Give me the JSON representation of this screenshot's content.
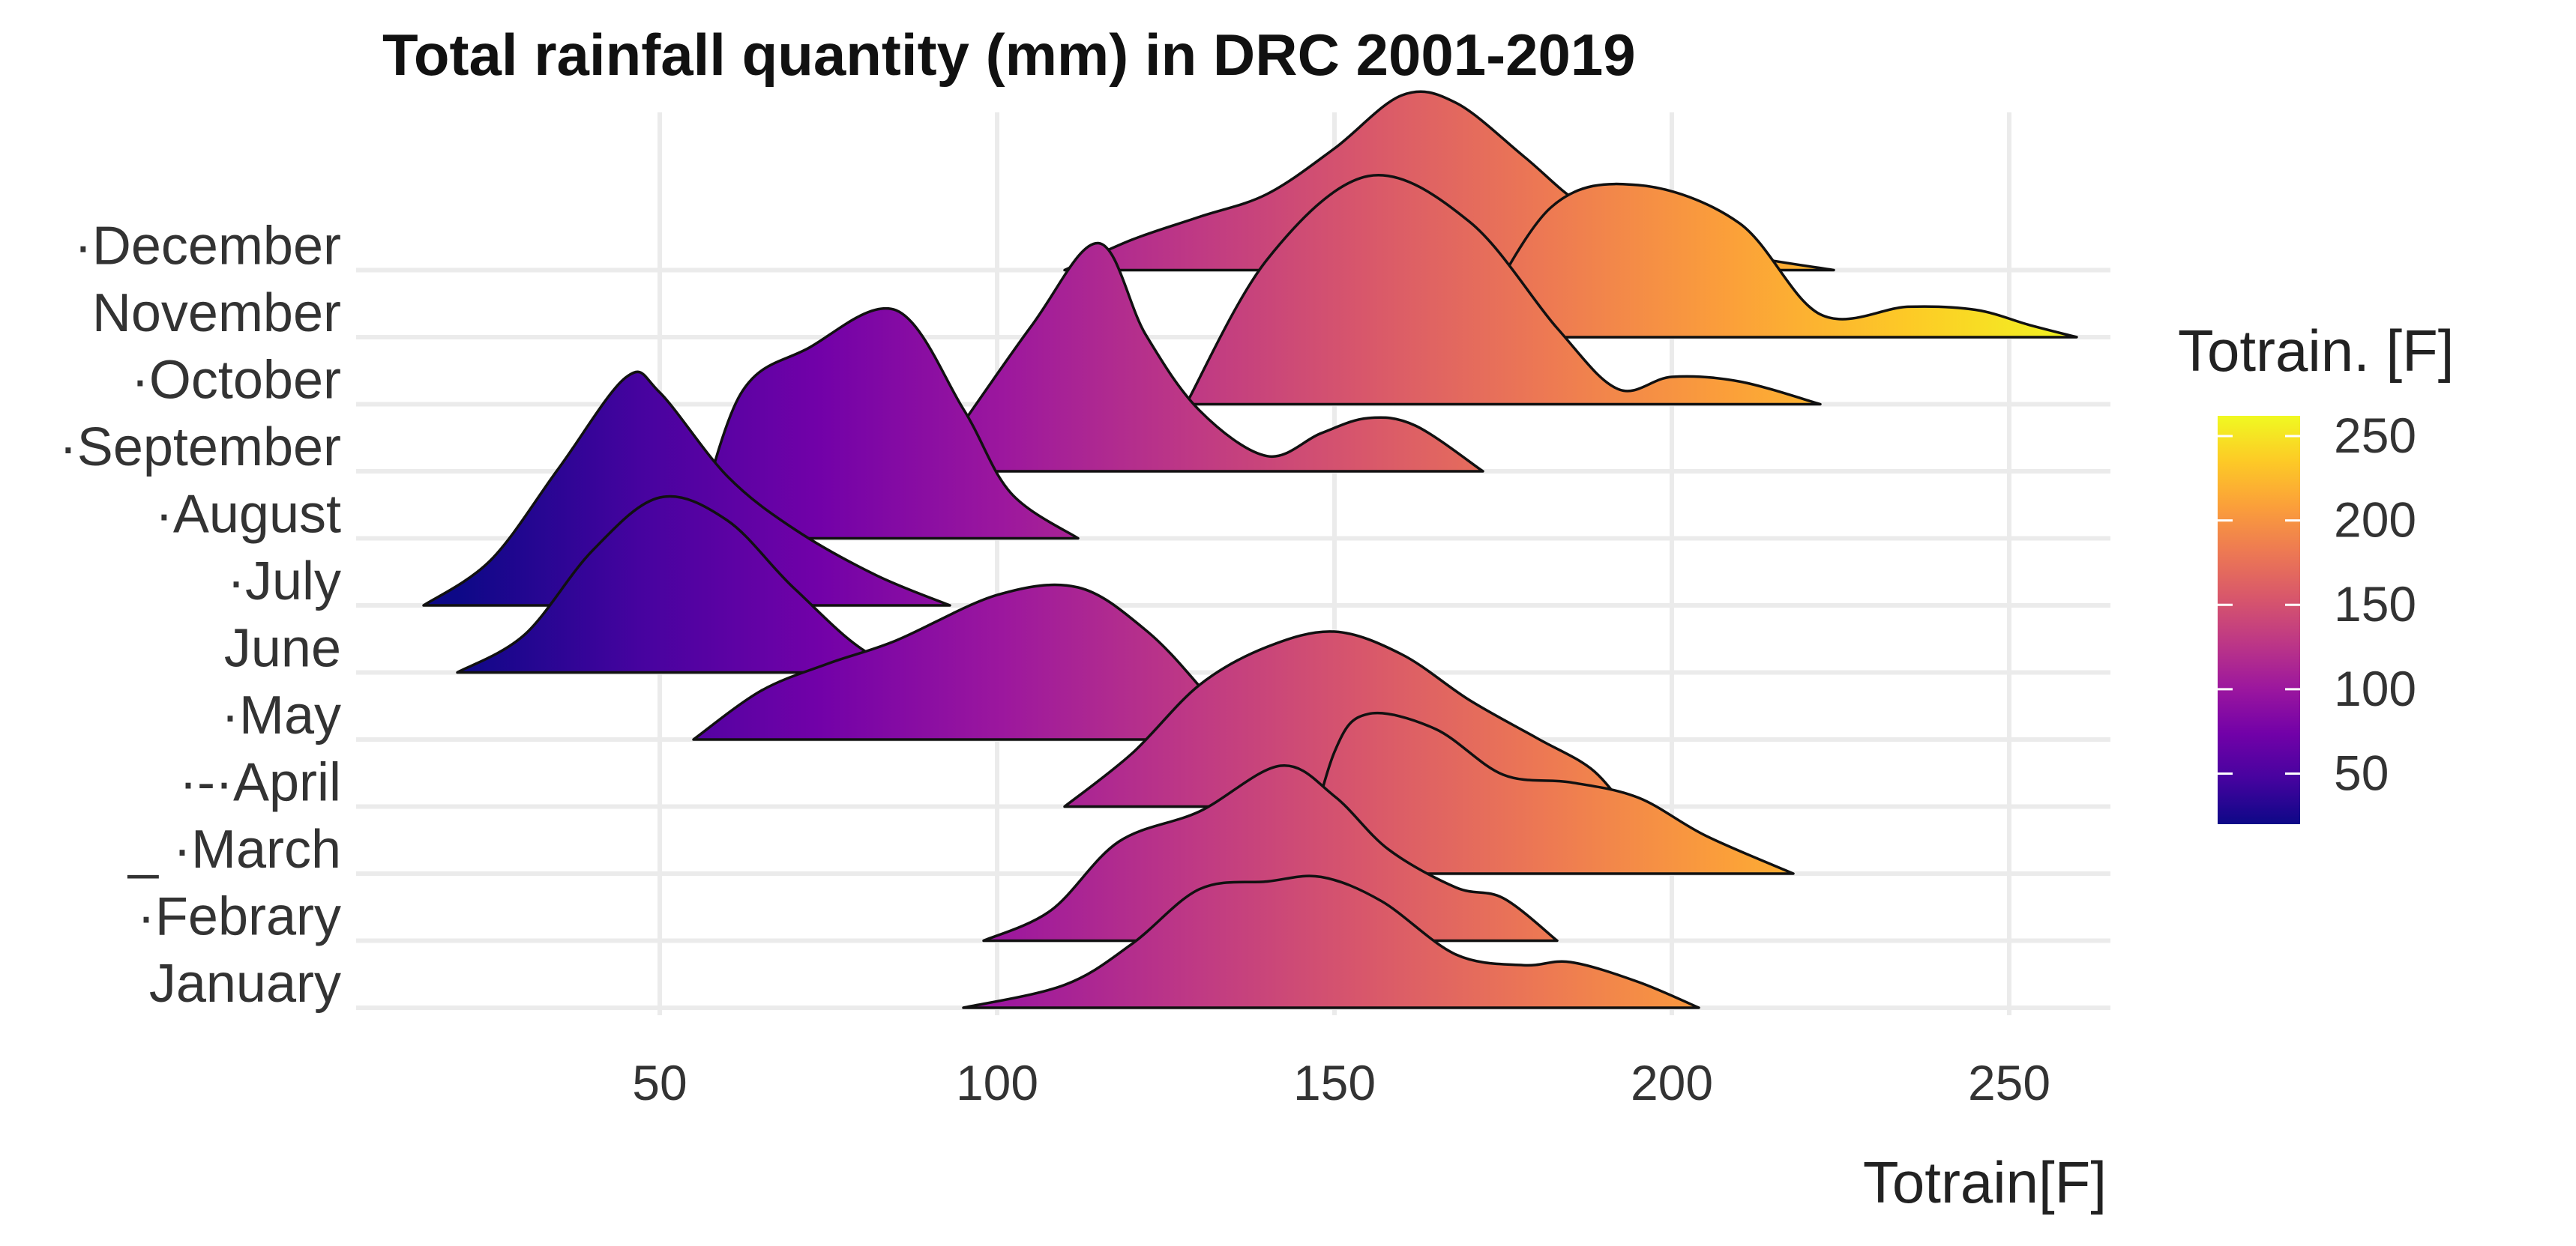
{
  "chart_data": {
    "type": "ridgeline",
    "title": "Total rainfall quantity (mm) in DRC 2001-2019",
    "xlabel": "Totrain[F]",
    "ylabel": "",
    "xlim": [
      5,
      265
    ],
    "x_ticks": [
      50,
      100,
      150,
      200,
      250
    ],
    "grid": true,
    "colorscale": "plasma",
    "legend": {
      "title": "Totrain. [F]",
      "placement": "right",
      "range": [
        20,
        262
      ],
      "ticks": [
        50,
        100,
        150,
        200,
        250
      ]
    },
    "categories": [
      "January",
      "Febrary",
      "March",
      "April",
      "May",
      "June",
      "July",
      "August",
      "September",
      "October",
      "November",
      "December"
    ],
    "category_labels": [
      "January",
      "·Febrary",
      "_ ·March",
      "·-·April",
      "·May",
      "June",
      "·July",
      "·August",
      "·September",
      "·October",
      "November",
      "·December"
    ],
    "series": [
      {
        "name": "January",
        "points": [
          [
            95,
            0
          ],
          [
            110,
            0.15
          ],
          [
            120,
            0.42
          ],
          [
            130,
            0.78
          ],
          [
            140,
            0.83
          ],
          [
            148,
            0.86
          ],
          [
            157,
            0.7
          ],
          [
            168,
            0.35
          ],
          [
            178,
            0.28
          ],
          [
            185,
            0.3
          ],
          [
            195,
            0.17
          ],
          [
            204,
            0
          ]
        ]
      },
      {
        "name": "Febrary",
        "points": [
          [
            98,
            0
          ],
          [
            108,
            0.2
          ],
          [
            118,
            0.65
          ],
          [
            130,
            0.85
          ],
          [
            142,
            1.15
          ],
          [
            150,
            0.95
          ],
          [
            158,
            0.6
          ],
          [
            168,
            0.35
          ],
          [
            175,
            0.28
          ],
          [
            183,
            0
          ]
        ]
      },
      {
        "name": "March",
        "points": [
          [
            145,
            0
          ],
          [
            150,
            0.8
          ],
          [
            155,
            1.05
          ],
          [
            165,
            0.95
          ],
          [
            175,
            0.65
          ],
          [
            185,
            0.6
          ],
          [
            195,
            0.5
          ],
          [
            205,
            0.25
          ],
          [
            218,
            0
          ]
        ]
      },
      {
        "name": "April",
        "points": [
          [
            110,
            0
          ],
          [
            120,
            0.35
          ],
          [
            130,
            0.8
          ],
          [
            140,
            1.05
          ],
          [
            150,
            1.15
          ],
          [
            160,
            1.0
          ],
          [
            170,
            0.7
          ],
          [
            180,
            0.45
          ],
          [
            188,
            0.25
          ],
          [
            193,
            0
          ]
        ]
      },
      {
        "name": "May",
        "points": [
          [
            55,
            0
          ],
          [
            65,
            0.32
          ],
          [
            75,
            0.5
          ],
          [
            85,
            0.65
          ],
          [
            100,
            0.95
          ],
          [
            112,
            1.0
          ],
          [
            122,
            0.72
          ],
          [
            130,
            0.35
          ],
          [
            136,
            0
          ]
        ]
      },
      {
        "name": "June",
        "points": [
          [
            20,
            0
          ],
          [
            30,
            0.25
          ],
          [
            40,
            0.8
          ],
          [
            50,
            1.15
          ],
          [
            60,
            1.0
          ],
          [
            70,
            0.55
          ],
          [
            82,
            0.1
          ],
          [
            95,
            0
          ]
        ]
      },
      {
        "name": "July",
        "points": [
          [
            15,
            0
          ],
          [
            25,
            0.3
          ],
          [
            35,
            0.9
          ],
          [
            45,
            1.5
          ],
          [
            50,
            1.4
          ],
          [
            60,
            0.85
          ],
          [
            70,
            0.5
          ],
          [
            82,
            0.2
          ],
          [
            93,
            0
          ]
        ]
      },
      {
        "name": "August",
        "points": [
          [
            55,
            0
          ],
          [
            62,
            0.95
          ],
          [
            72,
            1.25
          ],
          [
            85,
            1.5
          ],
          [
            95,
            0.85
          ],
          [
            102,
            0.3
          ],
          [
            112,
            0
          ]
        ]
      },
      {
        "name": "September",
        "points": [
          [
            90,
            0
          ],
          [
            105,
            0.95
          ],
          [
            115,
            1.5
          ],
          [
            122,
            0.9
          ],
          [
            130,
            0.4
          ],
          [
            140,
            0.1
          ],
          [
            148,
            0.25
          ],
          [
            155,
            0.35
          ],
          [
            162,
            0.3
          ],
          [
            172,
            0
          ]
        ]
      },
      {
        "name": "October",
        "points": [
          [
            128,
            0
          ],
          [
            140,
            0.95
          ],
          [
            155,
            1.5
          ],
          [
            170,
            1.2
          ],
          [
            183,
            0.5
          ],
          [
            192,
            0.1
          ],
          [
            200,
            0.18
          ],
          [
            210,
            0.15
          ],
          [
            222,
            0
          ]
        ]
      },
      {
        "name": "November",
        "points": [
          [
            170,
            0
          ],
          [
            182,
            0.85
          ],
          [
            195,
            1.0
          ],
          [
            210,
            0.75
          ],
          [
            222,
            0.15
          ],
          [
            235,
            0.2
          ],
          [
            245,
            0.18
          ],
          [
            253,
            0.08
          ],
          [
            260,
            0
          ]
        ]
      },
      {
        "name": "December",
        "points": [
          [
            110,
            0
          ],
          [
            120,
            0.2
          ],
          [
            130,
            0.35
          ],
          [
            140,
            0.5
          ],
          [
            150,
            0.8
          ],
          [
            160,
            1.15
          ],
          [
            168,
            1.1
          ],
          [
            178,
            0.75
          ],
          [
            186,
            0.45
          ],
          [
            195,
            0.25
          ],
          [
            210,
            0.1
          ],
          [
            224,
            0
          ]
        ]
      }
    ]
  }
}
